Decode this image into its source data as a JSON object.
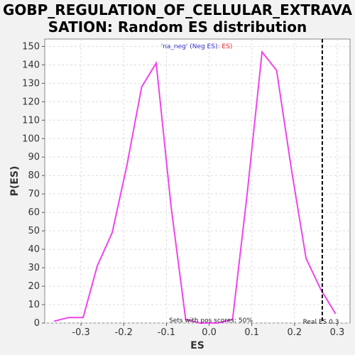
{
  "title_line1": "GOBP_REGULATION_OF_CELLULAR_EXTRAVA",
  "title_line2": "SATION: Random ES distribution",
  "chart_data": {
    "type": "line",
    "title": "GOBP_REGULATION_OF_CELLULAR_EXTRAVASATION: Random ES distribution",
    "xlabel": "ES",
    "ylabel": "P(ES)",
    "xlim": [
      -0.385,
      0.33
    ],
    "ylim": [
      0,
      154
    ],
    "x_ticks": [
      -0.3,
      -0.2,
      -0.1,
      0.0,
      0.1,
      0.2,
      0.3
    ],
    "y_ticks": [
      0,
      10,
      20,
      30,
      40,
      50,
      60,
      70,
      80,
      90,
      100,
      110,
      120,
      130,
      140,
      150
    ],
    "x_tick_labels": [
      "-0.3",
      "-0.2",
      "-0.1",
      "0.0",
      "0.1",
      "0.2",
      "0.3"
    ],
    "grid": true,
    "series": [
      {
        "color": "#ee44ee",
        "x": [
          -0.363,
          -0.329,
          -0.295,
          -0.262,
          -0.227,
          -0.193,
          -0.158,
          -0.124,
          -0.089,
          -0.055,
          -0.021,
          0.021,
          0.055,
          0.089,
          0.124,
          0.158,
          0.193,
          0.227,
          0.262,
          0.296
        ],
        "y": [
          1,
          3,
          3,
          31,
          49,
          85,
          128,
          141,
          63,
          2,
          0,
          0,
          2,
          70,
          147,
          137,
          83,
          35,
          18,
          5
        ]
      }
    ],
    "real_es": 0.265,
    "legend_text_neg": "'na_neg' (Neg ES)",
    "legend_text_pos": ": ES)",
    "annotation_pos_scores": "Sets with pos scores: 50%",
    "annotation_real_es": "Real ES 0.3"
  },
  "colors": {
    "line": "#ee44ee",
    "real_es_line": "#000000",
    "legend_neg": "#3333cc",
    "legend_pos": "#dd2222"
  }
}
